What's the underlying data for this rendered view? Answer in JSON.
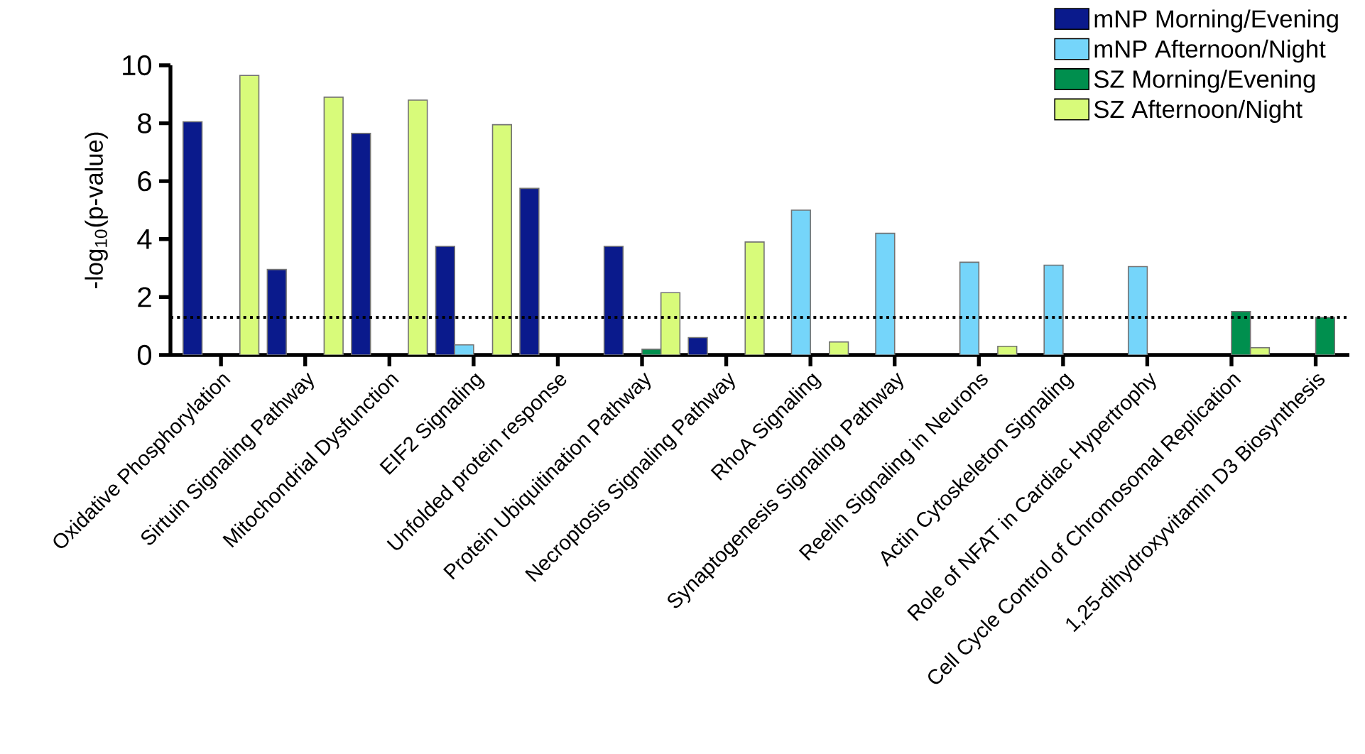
{
  "chart_data": {
    "type": "bar",
    "ylabel": "-log$_{10}$(p-value)",
    "categories": [
      "Oxidative Phosphorylation",
      "Sirtuin Signaling Pathway",
      "Mitochondrial Dysfunction",
      "EIF2 Signaling",
      "Unfolded protein response",
      "Protein Ubiquitination Pathway",
      "Necroptosis Signaling Pathway",
      "RhoA Signaling",
      "Synaptogenesis Signaling Pathway",
      "Reelin Signaling in Neurons",
      "Actin Cytoskeleton Signaling",
      "Role of NFAT in Cardiac Hypertrophy",
      "Cell Cycle Control of Chromosomal Replication",
      "1,25-dihydroxyvitamin D3 Biosynthesis"
    ],
    "series": [
      {
        "name": "mNP Morning/Evening",
        "color": "#0a1a8c",
        "values": [
          8.05,
          2.95,
          7.65,
          3.75,
          5.75,
          3.75,
          0.6,
          null,
          null,
          null,
          null,
          null,
          null,
          null
        ]
      },
      {
        "name": "mNP Afternoon/Night",
        "color": "#75d5fa",
        "values": [
          null,
          null,
          null,
          0.35,
          null,
          null,
          null,
          5.0,
          4.2,
          3.2,
          3.1,
          3.05,
          null,
          null
        ]
      },
      {
        "name": "SZ Morning/Evening",
        "color": "#008f4e",
        "values": [
          null,
          null,
          null,
          null,
          null,
          0.2,
          null,
          null,
          null,
          null,
          null,
          null,
          1.5,
          1.3
        ]
      },
      {
        "name": "SZ Afternoon/Night",
        "color": "#d8fb7a",
        "values": [
          9.65,
          8.9,
          8.8,
          7.95,
          null,
          2.15,
          3.9,
          0.45,
          null,
          0.3,
          null,
          null,
          0.25,
          null
        ]
      }
    ],
    "ylim": [
      0,
      10
    ],
    "yticks": [
      0,
      2,
      4,
      6,
      8,
      10
    ],
    "ref_lines": [
      {
        "axis": "y",
        "value": 1.3,
        "line_style": "dotted"
      }
    ],
    "legend": "top right"
  }
}
